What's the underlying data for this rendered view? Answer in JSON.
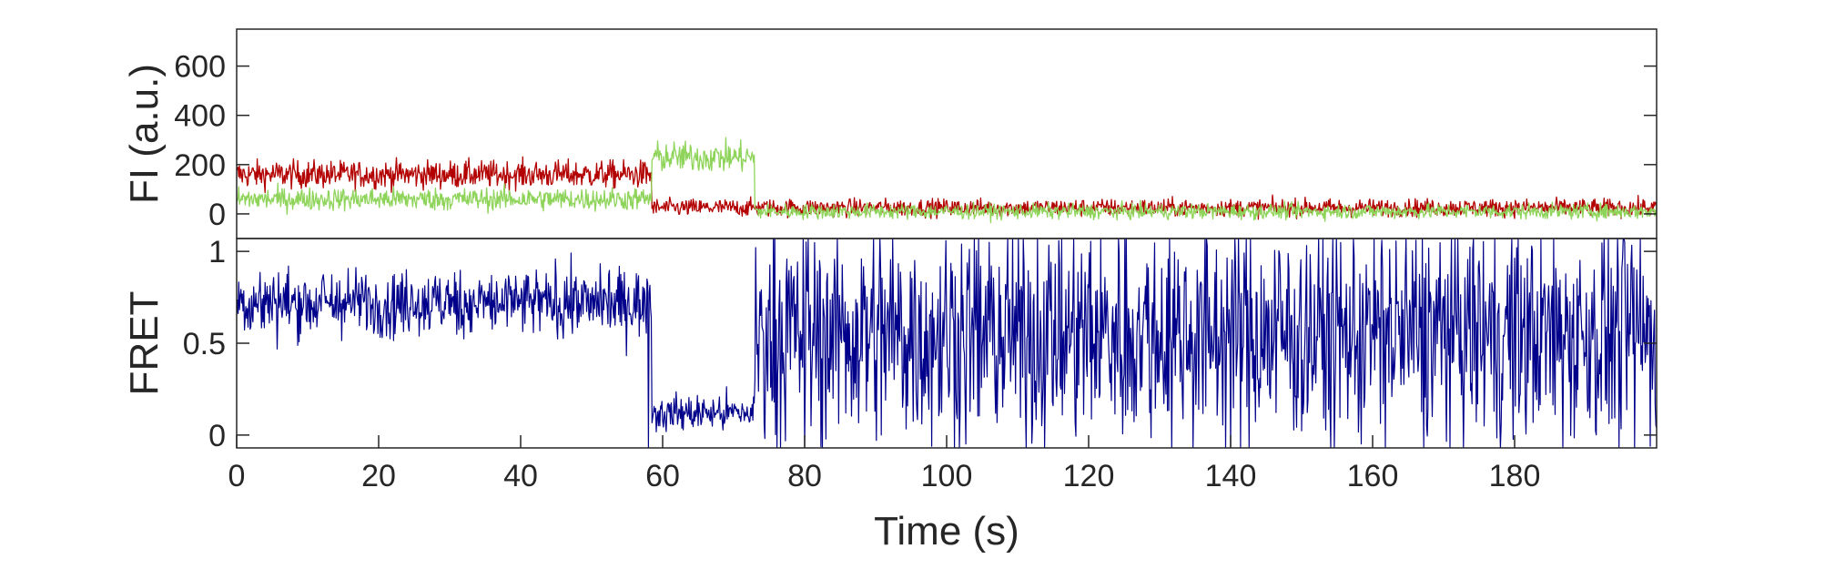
{
  "chart_data": [
    {
      "type": "line",
      "panel": "fluorescence",
      "ylabel": "FI (a.u.)",
      "xlabel": "",
      "xlim": [
        0,
        200
      ],
      "ylim": [
        -100,
        750
      ],
      "yticks": [
        0,
        200,
        400,
        600
      ],
      "ytick_labels": [
        "0",
        "200",
        "400",
        "600"
      ],
      "grid": false,
      "series": [
        {
          "key": "acceptor",
          "color": "#b30000",
          "segments": [
            {
              "t0": 0,
              "t1": 58.5,
              "mean": 160,
              "noise": 55
            },
            {
              "t0": 58.5,
              "t1": 200,
              "mean": 25,
              "noise": 35
            }
          ]
        },
        {
          "key": "donor",
          "color": "#8fd45a",
          "segments": [
            {
              "t0": 0,
              "t1": 58.5,
              "mean": 60,
              "noise": 45
            },
            {
              "t0": 58.5,
              "t1": 73,
              "mean": 230,
              "noise": 60
            },
            {
              "t0": 73,
              "t1": 200,
              "mean": 10,
              "noise": 30
            }
          ]
        }
      ]
    },
    {
      "type": "line",
      "panel": "fret",
      "ylabel": "FRET",
      "xlabel": "Time (s)",
      "xlim": [
        0,
        200
      ],
      "ylim": [
        -0.07,
        1.07
      ],
      "yticks": [
        0,
        0.5,
        1
      ],
      "ytick_labels": [
        "0",
        "0.5",
        "1"
      ],
      "xticks": [
        0,
        20,
        40,
        60,
        80,
        100,
        120,
        140,
        160,
        180
      ],
      "xtick_labels": [
        "0",
        "20",
        "40",
        "60",
        "80",
        "100",
        "120",
        "140",
        "160",
        "180"
      ],
      "grid": false,
      "series": [
        {
          "key": "fret",
          "color": "#00008b",
          "segments": [
            {
              "t0": 0,
              "t1": 58.5,
              "mean": 0.72,
              "noise": 0.18
            },
            {
              "t0": 58.5,
              "t1": 73,
              "mean": 0.12,
              "noise": 0.1
            },
            {
              "t0": 73,
              "t1": 200,
              "mean": 0.55,
              "noise": 0.6
            }
          ]
        }
      ]
    }
  ]
}
